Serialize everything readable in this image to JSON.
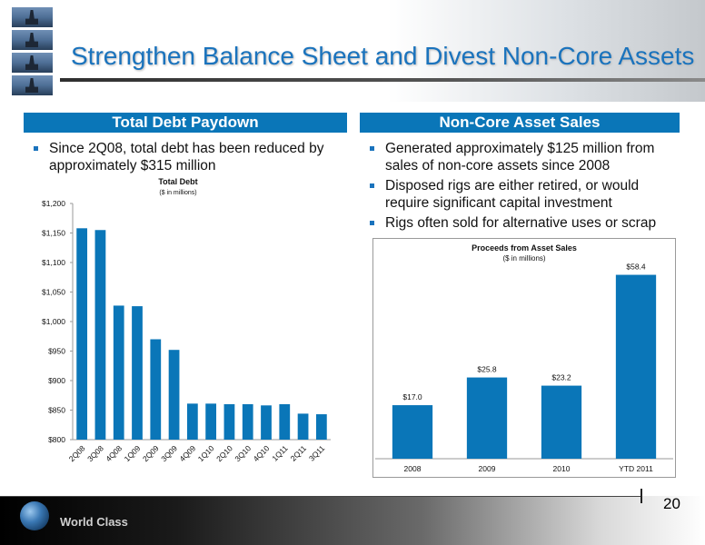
{
  "title": "Strengthen Balance Sheet and Divest Non-Core Assets",
  "left_panel": {
    "heading": "Total Debt Paydown",
    "bullets": [
      "Since 2Q08, total debt has been reduced by approximately $315 million"
    ]
  },
  "right_panel": {
    "heading": "Non-Core Asset Sales",
    "bullets": [
      "Generated approximately $125 million from sales of non-core assets since 2008",
      "Disposed rigs are either retired, or would require significant capital investment",
      "Rigs often sold for alternative uses or scrap"
    ]
  },
  "footer": {
    "brand": "World Class",
    "page_number": "20"
  },
  "colors": {
    "bar": "#0a76b8",
    "title": "#1a73bd",
    "panel_header": "#0a76b8"
  },
  "chart_data": [
    {
      "type": "bar",
      "title": "Total Debt",
      "subtitle": "($ in millions)",
      "categories": [
        "2Q08",
        "3Q08",
        "4Q08",
        "1Q09",
        "2Q09",
        "3Q09",
        "4Q09",
        "1Q10",
        "2Q10",
        "3Q10",
        "4Q10",
        "1Q11",
        "2Q11",
        "3Q11"
      ],
      "values": [
        1158,
        1155,
        1027,
        1026,
        970,
        952,
        861,
        861,
        860,
        860,
        858,
        860,
        844,
        843
      ],
      "ylim": [
        800,
        1200
      ],
      "yticks": [
        800,
        850,
        900,
        950,
        1000,
        1050,
        1100,
        1150,
        1200
      ],
      "ytick_labels": [
        "$800",
        "$850",
        "$900",
        "$950",
        "$1,000",
        "$1,050",
        "$1,100",
        "$1,150",
        "$1,200"
      ]
    },
    {
      "type": "bar",
      "title": "Proceeds from Asset Sales",
      "subtitle": "($ in millions)",
      "categories": [
        "2008",
        "2009",
        "2010",
        "YTD 2011"
      ],
      "values": [
        17.0,
        25.8,
        23.2,
        58.4
      ],
      "data_labels": [
        "$17.0",
        "$25.8",
        "$23.2",
        "$58.4"
      ],
      "ylim": [
        0,
        60
      ]
    }
  ]
}
